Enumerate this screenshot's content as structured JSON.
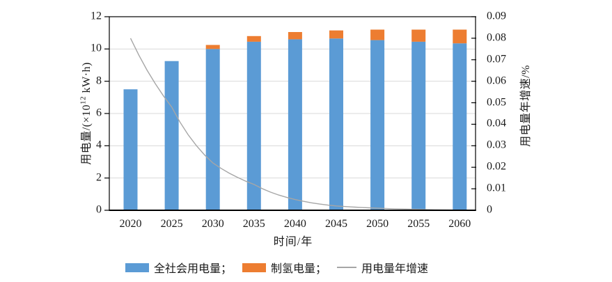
{
  "chart_data": {
    "type": "bar",
    "subtype": "stacked-bars-with-line",
    "categories": [
      "2020",
      "2025",
      "2030",
      "2035",
      "2040",
      "2045",
      "2050",
      "2055",
      "2060"
    ],
    "series": [
      {
        "name": "全社会用电量",
        "type": "bar",
        "color": "#5b9bd5",
        "axis": "left",
        "values": [
          7.5,
          9.25,
          10.0,
          10.45,
          10.6,
          10.65,
          10.55,
          10.45,
          10.35
        ]
      },
      {
        "name": "制氢电量",
        "type": "bar",
        "color": "#ed7d31",
        "axis": "left",
        "values": [
          0,
          0,
          0.25,
          0.35,
          0.45,
          0.5,
          0.65,
          0.75,
          0.85
        ]
      },
      {
        "name": "用电量年增速",
        "type": "line",
        "color": "#a6a6a6",
        "axis": "right",
        "values": [
          0.08,
          0.048,
          0.022,
          0.012,
          0.005,
          0.002,
          0.001,
          0.0004,
          0.0001
        ]
      }
    ],
    "xlabel": "时间/年",
    "ylabel_left": "用电量/(×10¹² kW·h)",
    "ylabel_right": "用电量年增速/%",
    "axis_left": {
      "min": 0,
      "max": 12,
      "step": 2,
      "tick_labels": [
        "0",
        "2",
        "4",
        "6",
        "8",
        "10",
        "12"
      ]
    },
    "axis_right": {
      "min": 0,
      "max": 0.09,
      "step": 0.01,
      "tick_labels": [
        "0",
        "0.01",
        "0.02",
        "0.03",
        "0.04",
        "0.05",
        "0.06",
        "0.07",
        "0.08",
        "0.09"
      ]
    },
    "grid": "horizontal",
    "gridline_color": "#d9d9d9",
    "axis_color": "#000000",
    "legend_position": "bottom",
    "legend": [
      {
        "label": "全社会用电量；",
        "swatch": "bar",
        "color": "#5b9bd5"
      },
      {
        "label": "制氢电量；",
        "swatch": "bar",
        "color": "#ed7d31"
      },
      {
        "label": "用电量年增速",
        "swatch": "line",
        "color": "#a6a6a6"
      }
    ]
  },
  "axis_left_title": {
    "prefix": "用电量/(×10",
    "sup": "12",
    "suffix": " kW·h)"
  }
}
